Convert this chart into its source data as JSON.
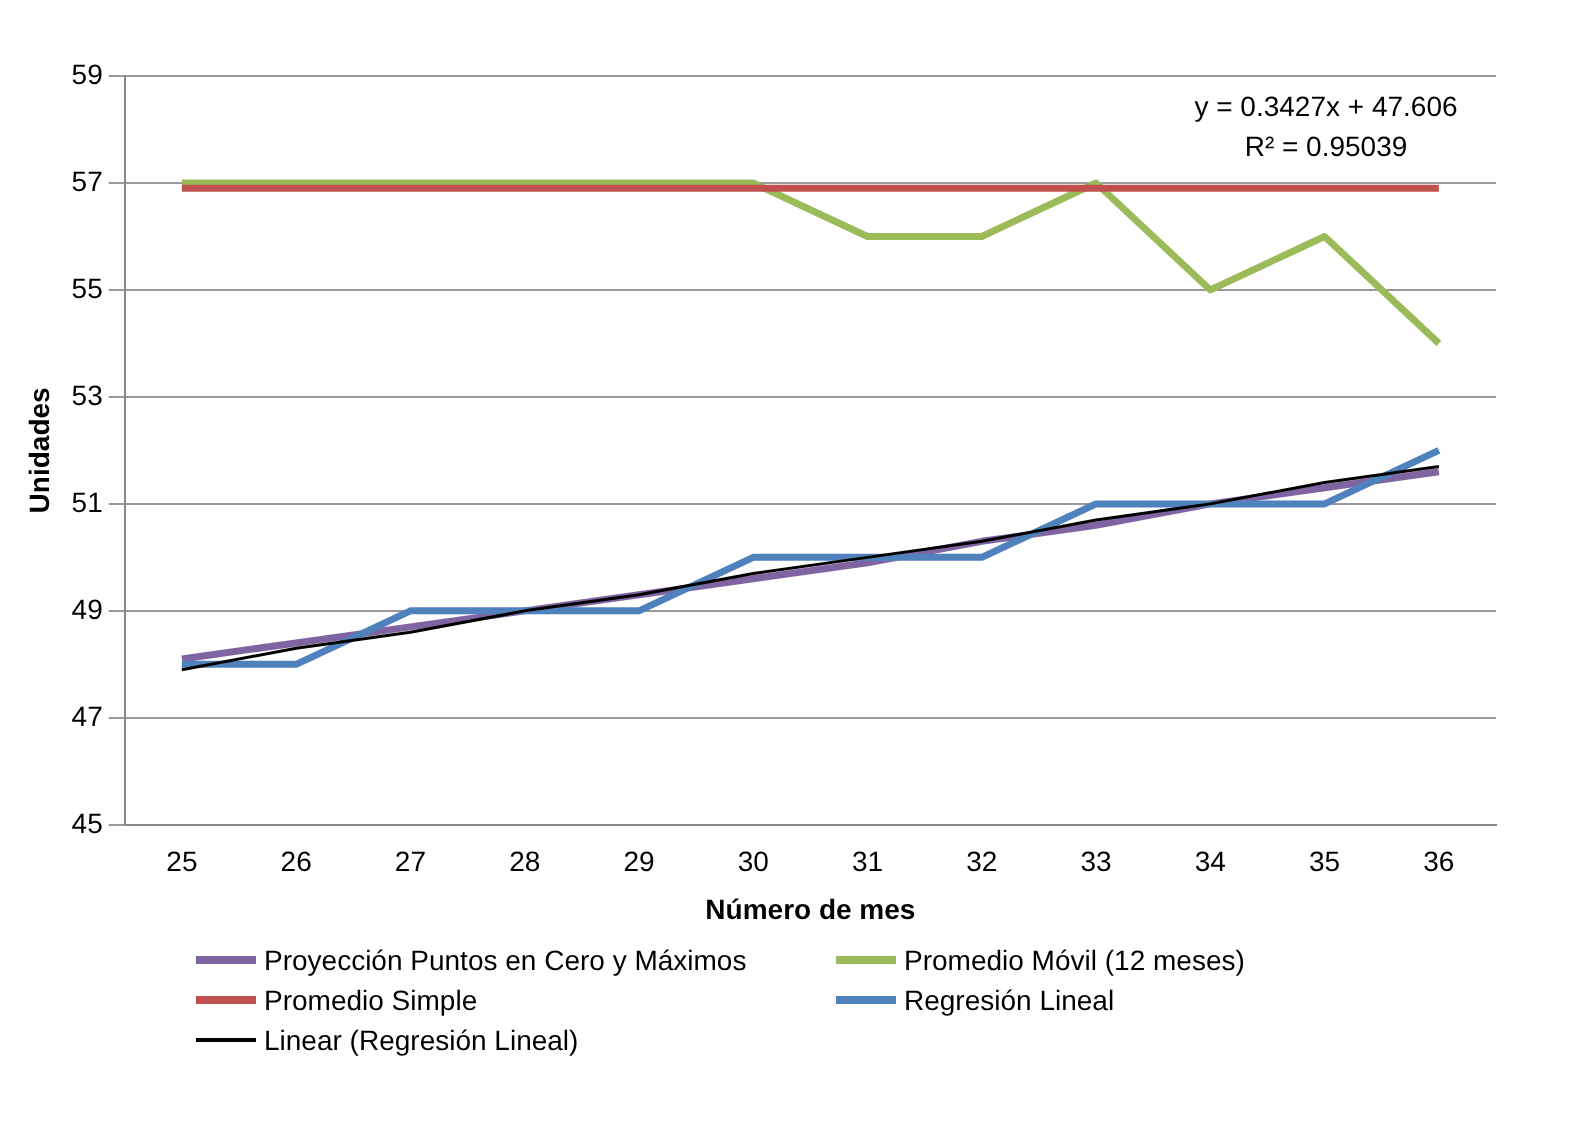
{
  "chart_data": {
    "type": "line",
    "xlabel": "Número de mes",
    "ylabel": "Unidades",
    "categories": [
      "25",
      "26",
      "27",
      "28",
      "29",
      "30",
      "31",
      "32",
      "33",
      "34",
      "35",
      "36"
    ],
    "series": [
      {
        "name": "Proyección Puntos en Cero y Máximos",
        "color": "#8064a2",
        "values": [
          48.1,
          48.4,
          48.7,
          49.0,
          49.3,
          49.6,
          49.9,
          50.3,
          50.6,
          51.0,
          51.3,
          51.6
        ]
      },
      {
        "name": "Promedio Móvil (12 meses)",
        "color": "#9bbb59",
        "values": [
          57,
          57,
          57,
          57,
          57,
          57,
          56,
          56,
          57,
          55,
          56,
          54
        ]
      },
      {
        "name": "Promedio Simple",
        "color": "#c0504d",
        "values": [
          56.9,
          56.9,
          56.9,
          56.9,
          56.9,
          56.9,
          56.9,
          56.9,
          56.9,
          56.9,
          56.9,
          56.9
        ]
      },
      {
        "name": "Regresión Lineal",
        "color": "#4f81bd",
        "values": [
          48,
          48,
          49,
          49,
          49,
          50,
          50,
          50,
          51,
          51,
          51,
          52
        ]
      },
      {
        "name": "Linear (Regresión Lineal)",
        "color": "#000000",
        "values": [
          47.9,
          48.3,
          48.6,
          49.0,
          49.3,
          49.7,
          50.0,
          50.3,
          50.7,
          51.0,
          51.4,
          51.7
        ]
      }
    ],
    "ylim": [
      45,
      59
    ],
    "yticks": [
      45,
      47,
      49,
      51,
      53,
      55,
      57,
      59
    ],
    "grid": "y",
    "legend": "bottom",
    "marker": "none",
    "line_style": "solid",
    "annotations": [
      "y = 0.3427x + 47.606",
      "R² = 0.95039"
    ]
  }
}
